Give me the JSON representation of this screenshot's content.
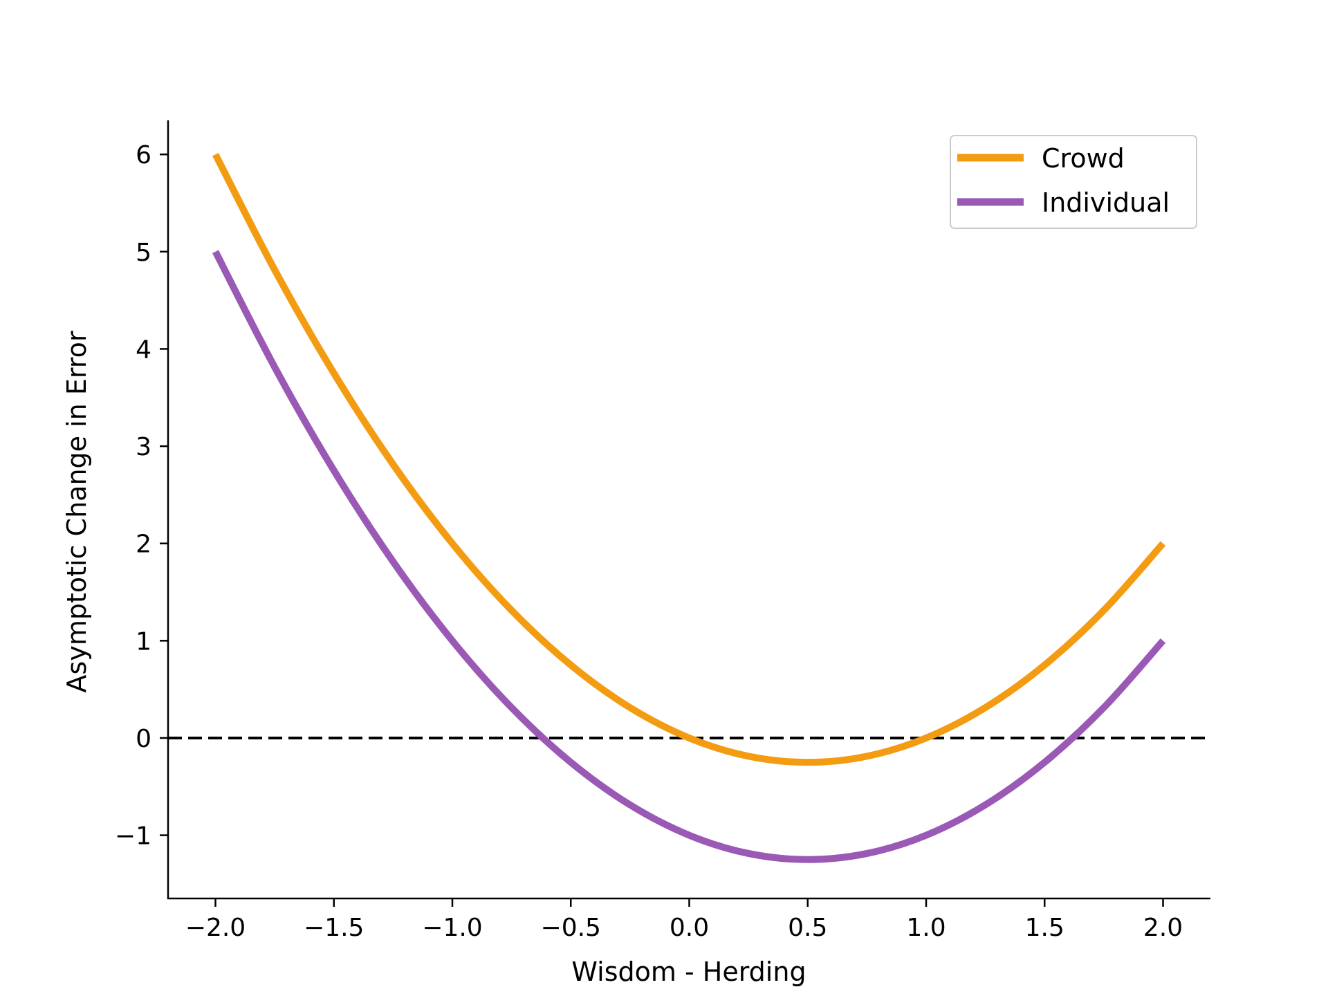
{
  "chart_data": {
    "type": "line",
    "xlabel": "Wisdom - Herding",
    "ylabel": "Asymptotic Change in Error",
    "xlim": [
      -2.2,
      2.2
    ],
    "ylim": [
      -1.65,
      6.35
    ],
    "x_ticks": [
      -2.0,
      -1.5,
      -1.0,
      -0.5,
      0.0,
      0.5,
      1.0,
      1.5,
      2.0
    ],
    "x_tick_labels": [
      "−2.0",
      "−1.5",
      "−1.0",
      "−0.5",
      "0.0",
      "0.5",
      "1.0",
      "1.5",
      "2.0"
    ],
    "y_ticks": [
      -1,
      0,
      1,
      2,
      3,
      4,
      5,
      6
    ],
    "y_tick_labels": [
      "−1",
      "0",
      "1",
      "2",
      "3",
      "4",
      "5",
      "6"
    ],
    "reference_line": {
      "y": 0,
      "style": "dashed",
      "color": "#000000"
    },
    "legend_position": "top-right",
    "series": [
      {
        "name": "Crowd",
        "color": "#F39C12",
        "x": [
          -2.0,
          -1.75,
          -1.5,
          -1.25,
          -1.0,
          -0.75,
          -0.5,
          -0.25,
          0.0,
          0.25,
          0.5,
          0.75,
          1.0,
          1.25,
          1.5,
          1.75,
          2.0
        ],
        "y": [
          6.0,
          4.8125,
          3.75,
          2.8125,
          2.0,
          1.3125,
          0.75,
          0.3125,
          0.0,
          -0.1875,
          -0.25,
          -0.1875,
          0.0,
          0.3125,
          0.75,
          1.3125,
          2.0
        ]
      },
      {
        "name": "Individual",
        "color": "#9B59B6",
        "x": [
          -2.0,
          -1.75,
          -1.5,
          -1.25,
          -1.0,
          -0.75,
          -0.5,
          -0.25,
          0.0,
          0.25,
          0.5,
          0.75,
          1.0,
          1.25,
          1.5,
          1.75,
          2.0
        ],
        "y": [
          5.0,
          3.8125,
          2.75,
          1.8125,
          1.0,
          0.3125,
          -0.25,
          -0.6875,
          -1.0,
          -1.1875,
          -1.25,
          -1.1875,
          -1.0,
          -0.6875,
          -0.25,
          0.3125,
          1.0
        ]
      }
    ]
  }
}
